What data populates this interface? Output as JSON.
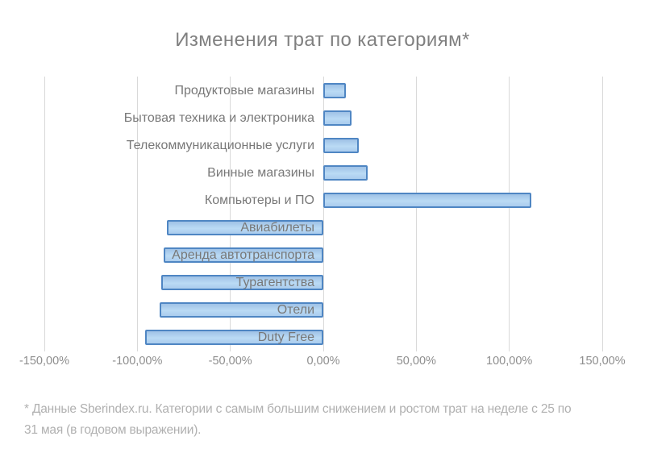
{
  "chart_data": {
    "type": "bar",
    "orientation": "horizontal",
    "title": "Изменения трат по категориям*",
    "categories": [
      "Продуктовые магазины",
      "Бытовая техника и электроника",
      "Телекоммуникационные услуги",
      "Винные магазины",
      "Компьютеры и ПО",
      "Авиабилеты",
      "Аренда автотранспорта",
      "Турагентства",
      "Отели",
      "Duty Free"
    ],
    "values": [
      12,
      15,
      19,
      24,
      112,
      -84,
      -86,
      -87,
      -88,
      -96
    ],
    "value_unit": "percent",
    "xlim": [
      -150,
      150
    ],
    "x_ticks": [
      -150,
      -100,
      -50,
      0,
      50,
      100,
      150
    ],
    "x_tick_labels": [
      "-150,00%",
      "-100,00%",
      "-50,00%",
      "0,00%",
      "50,00%",
      "100,00%",
      "150,00%"
    ],
    "grid": "vertical-only",
    "legend": "none",
    "colors": {
      "bar_fill": "#aacdee",
      "bar_border": "#4f86c3",
      "gridline": "#d9d9d9",
      "title_text": "#808080",
      "category_text": "#787878",
      "tick_text": "#8e8e8e",
      "footnote_text": "#b0b0b0"
    }
  },
  "footnote": {
    "lines": [
      "* Данные Sberindex.ru. Категории с самым большим снижением и ростом трат на неделе с 25 по",
      "31 мая (в годовом выражении)."
    ]
  }
}
